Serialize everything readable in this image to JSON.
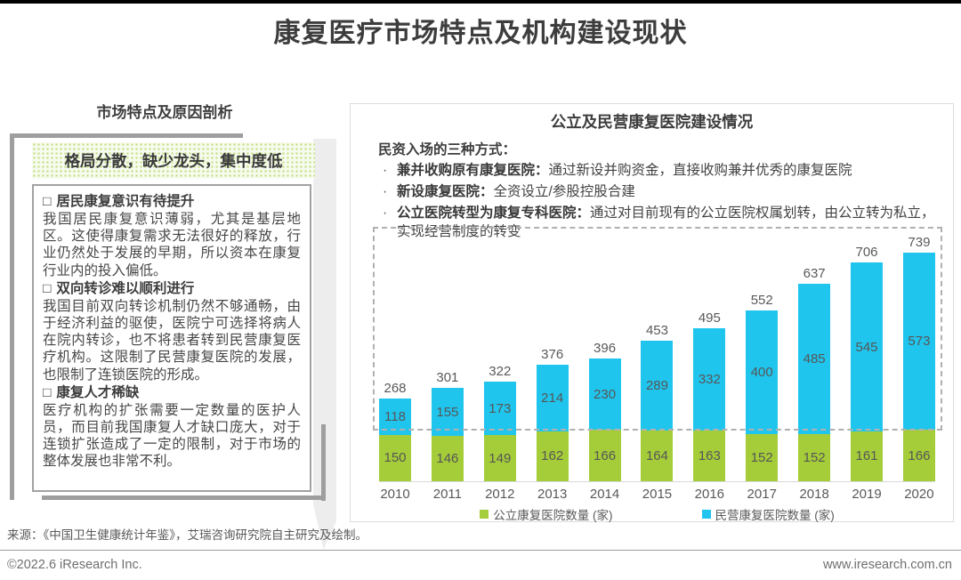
{
  "page": {
    "title": "康复医疗市场特点及机构建设现状",
    "footer": {
      "source": "来源：《中国卫生健康统计年鉴》，艾瑞咨询研究院自主研究及绘制。",
      "copyright": "©2022.6 iResearch Inc.",
      "website": "www.iresearch.com.cn"
    }
  },
  "left_panel": {
    "title": "市场特点及原因剖析",
    "highlight": "格局分散，缺少龙头，集中度低",
    "bullet_glyph": "□",
    "sections": [
      {
        "heading": "居民康复意识有待提升",
        "body": "我国居民康复意识薄弱，尤其是基层地区。这使得康复需求无法很好的释放，行业仍然处于发展的早期，所以资本在康复行业内的投入偏低。"
      },
      {
        "heading": "双向转诊难以顺利进行",
        "body": "我国目前双向转诊机制仍然不够通畅，由于经济利益的驱使，医院宁可选择将病人在院内转诊，也不将患者转到民营康复医疗机构。这限制了民营康复医院的发展，也限制了连锁医院的形成。"
      },
      {
        "heading": "康复人才稀缺",
        "body": "医疗机构的扩张需要一定数量的医护人员，而目前我国康复人才缺口庞大，对于连锁扩张造成了一定的限制，对于市场的整体发展也非常不利。"
      }
    ]
  },
  "right_panel": {
    "title": "公立及民营康复医院建设情况",
    "intro": "民资入场的三种方式：",
    "bullet_glyph": "·",
    "bullets": [
      {
        "lead": "兼并收购原有康复医院：",
        "rest": "通过新设并购资金，直接收购兼并优秀的康复医院"
      },
      {
        "lead": "新设康复医院：",
        "rest": "全资设立/参股控股合建"
      },
      {
        "lead": "公立医院转型为康复专科医院：",
        "rest": "通过对目前现有的公立医院权属划转，由公立转为私立，实现经营制度的转变"
      }
    ]
  },
  "chart_data": {
    "type": "bar",
    "stacked": true,
    "categories": [
      "2010",
      "2011",
      "2012",
      "2013",
      "2014",
      "2015",
      "2016",
      "2017",
      "2018",
      "2019",
      "2020"
    ],
    "series": [
      {
        "name": "公立康复医院数量 (家)",
        "color": "#a5cd39",
        "values": [
          150,
          146,
          149,
          162,
          166,
          164,
          163,
          152,
          152,
          161,
          166
        ]
      },
      {
        "name": "民营康复医院数量 (家)",
        "color": "#20c5ee",
        "values": [
          118,
          155,
          173,
          214,
          230,
          289,
          332,
          400,
          485,
          545,
          573
        ]
      }
    ],
    "totals": [
      268,
      301,
      322,
      376,
      396,
      453,
      495,
      552,
      637,
      706,
      739
    ],
    "ylim": [
      0,
      750
    ],
    "reference_line": 165,
    "grid": false,
    "legend_position": "bottom",
    "label_color": "#595959"
  },
  "colors": {
    "title_text": "#3d3d3d",
    "public_green": "#a5cd39",
    "private_blue": "#20c5ee",
    "bracket_gray": "#9e9e9e",
    "dashed_border": "#b0b0b0"
  }
}
